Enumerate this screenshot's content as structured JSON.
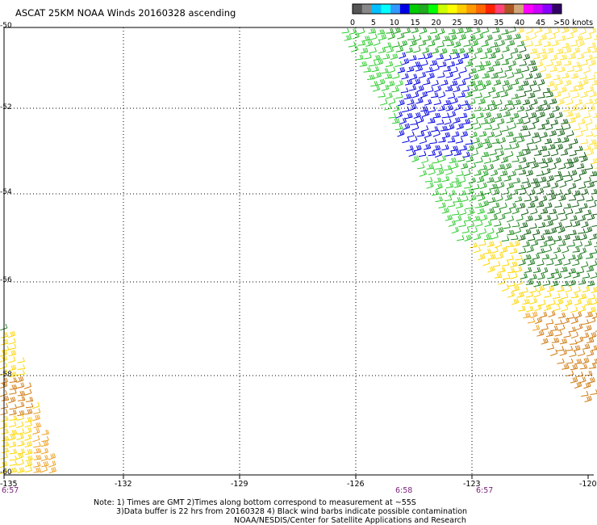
{
  "title": "ASCAT 25KM NOAA Winds 20160328 ascending",
  "legend": {
    "labels": [
      "0",
      "5",
      "10",
      "15",
      "20",
      "25",
      "30",
      "35",
      "40",
      "45",
      ">50 knots"
    ],
    "colors": [
      "#555555",
      "#888888",
      "#00bfff",
      "#00ffff",
      "#3399ff",
      "#0000e6",
      "#00cc00",
      "#22aa22",
      "#00ff00",
      "#ccff00",
      "#ffff00",
      "#ffcc00",
      "#ff9900",
      "#ff6600",
      "#ff2200",
      "#ff4477",
      "#aa5522",
      "#d2a679",
      "#ff00ff",
      "#cc00ff",
      "#8800ff",
      "#330066"
    ]
  },
  "y_axis": {
    "labels": [
      "-50",
      "-52",
      "-54",
      "-56",
      "-58",
      "-60"
    ]
  },
  "x_axis": {
    "labels": [
      "-135",
      "-132",
      "-129",
      "-126",
      "-123",
      "-120"
    ]
  },
  "times": [
    "6:57",
    "6:58",
    "6:57"
  ],
  "notes": [
    "Note: 1) Times are GMT 2)Times along bottom correspond to measurement at ~55S",
    "3)Data buffer is 22 hrs from 20160328 4) Black wind barbs indicate possible contamination",
    "NOAA/NESDIS/Center for Satellite Applications and Research"
  ]
}
